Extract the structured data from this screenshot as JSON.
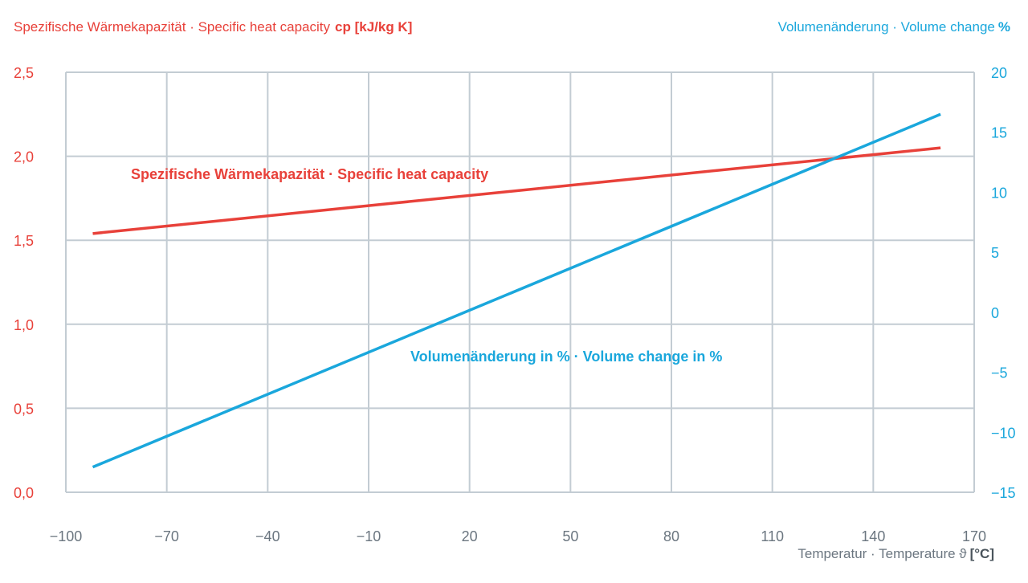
{
  "chart_data": {
    "type": "line",
    "title_left": "Spezifische Wärmekapazität · Specific heat capacity",
    "title_left_unit": "cp [kJ/kg K]",
    "title_right": "Volumenänderung · Volume change",
    "title_right_unit": "%",
    "xlabel": "Temperatur · Temperature ϑ",
    "xlabel_unit": "[°C]",
    "xlim": [
      -100,
      170
    ],
    "xticks": [
      -100,
      -70,
      -40,
      -10,
      20,
      50,
      80,
      110,
      140,
      170
    ],
    "xtick_labels": [
      "−100",
      "−70",
      "−40",
      "−10",
      "20",
      "50",
      "80",
      "110",
      "140",
      "170"
    ],
    "y_left": {
      "lim": [
        0,
        2.5
      ],
      "ticks": [
        0,
        0.5,
        1.0,
        1.5,
        2.0,
        2.5
      ],
      "tick_labels": [
        "0,0",
        "0,5",
        "1,0",
        "1,5",
        "2,0",
        "2,5"
      ]
    },
    "y_right": {
      "lim": [
        -15,
        20
      ],
      "ticks": [
        -15,
        -10,
        -5,
        0,
        5,
        10,
        15,
        20
      ],
      "tick_labels": [
        "−15",
        "−10",
        "−5",
        "0",
        "5",
        "10",
        "15",
        "20"
      ]
    },
    "grid": true,
    "series": [
      {
        "name": "Spezifische Wärmekapazität · Specific heat capacity",
        "axis": "left",
        "color": "#e8413a",
        "x": [
          -92,
          160
        ],
        "y": [
          1.54,
          2.05
        ]
      },
      {
        "name": "Volumenänderung in % · Volume change in %",
        "axis": "right",
        "color": "#1aa7dc",
        "x": [
          -92,
          160
        ],
        "y": [
          -12.9,
          16.5
        ]
      }
    ]
  }
}
